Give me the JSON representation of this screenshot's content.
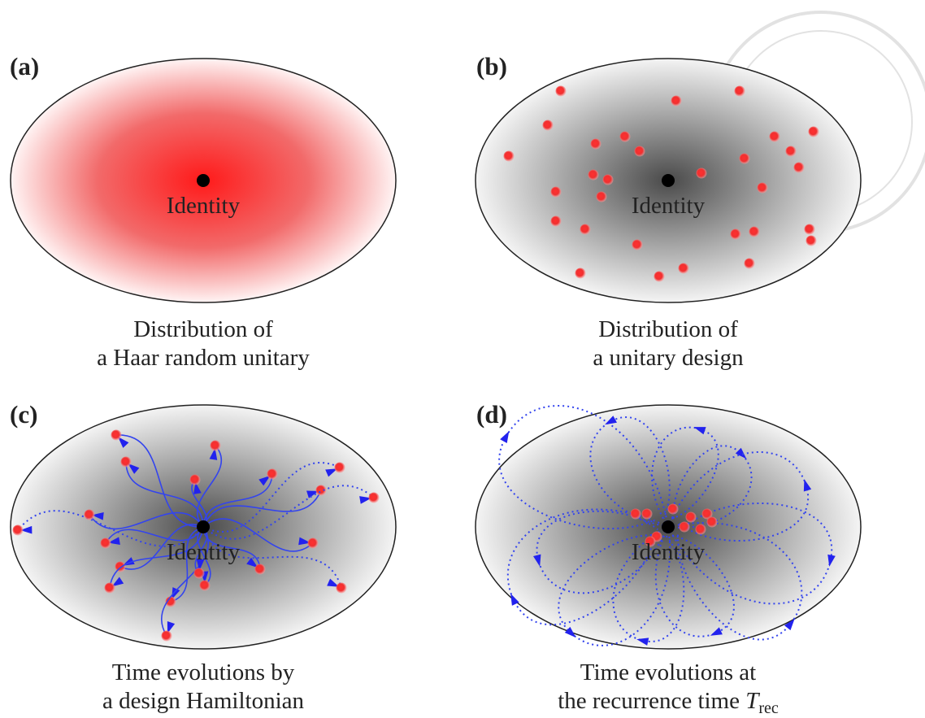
{
  "panels": [
    {
      "label": "(a)",
      "center_label": "Identity",
      "caption": [
        "Distribution of",
        "a Haar random unitary"
      ]
    },
    {
      "label": "(b)",
      "center_label": "Identity",
      "caption": [
        "Distribution of",
        "a unitary design"
      ]
    },
    {
      "label": "(c)",
      "center_label": "Identity",
      "caption": [
        "Time evolutions by",
        "a design Hamiltonian"
      ]
    },
    {
      "label": "(d)",
      "center_label": "Identity",
      "caption": [
        "Time evolutions at",
        {
          "text": "the recurrence time",
          "symbol": "T",
          "subscript": "rec"
        }
      ]
    }
  ]
}
